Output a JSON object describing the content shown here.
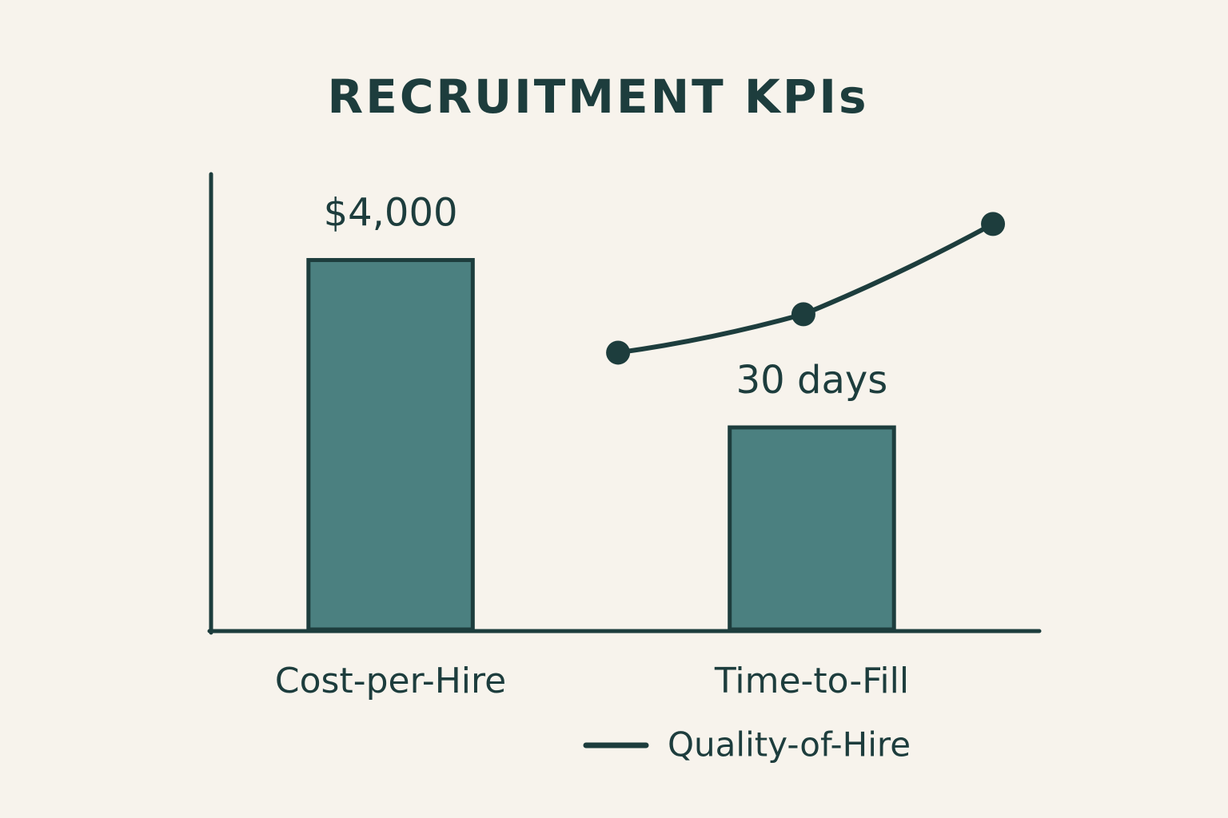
{
  "chart_data": {
    "type": "bar",
    "title": "RECRUITMENT KPIs",
    "categories": [
      "Cost-per-Hire",
      "Time-to-Fill"
    ],
    "values": [
      4000,
      30
    ],
    "value_labels": [
      "$4,000",
      "30 days"
    ],
    "axes": [
      "y",
      "y2"
    ],
    "ylim": [
      0,
      4930
    ],
    "y2lim": [
      0,
      67.6
    ],
    "xlim": [
      -0.43,
      1.54
    ],
    "color": "#4b8080",
    "edge_color": "#1d3d3d",
    "legend": "bottom-right",
    "line": {
      "type": "line",
      "name": "Quality-of-Hire",
      "axis": "y2",
      "x": [
        0.54,
        0.98,
        1.43
      ],
      "values": [
        41.1,
        46.8,
        60.2
      ],
      "color": "#1d3d3d"
    }
  }
}
